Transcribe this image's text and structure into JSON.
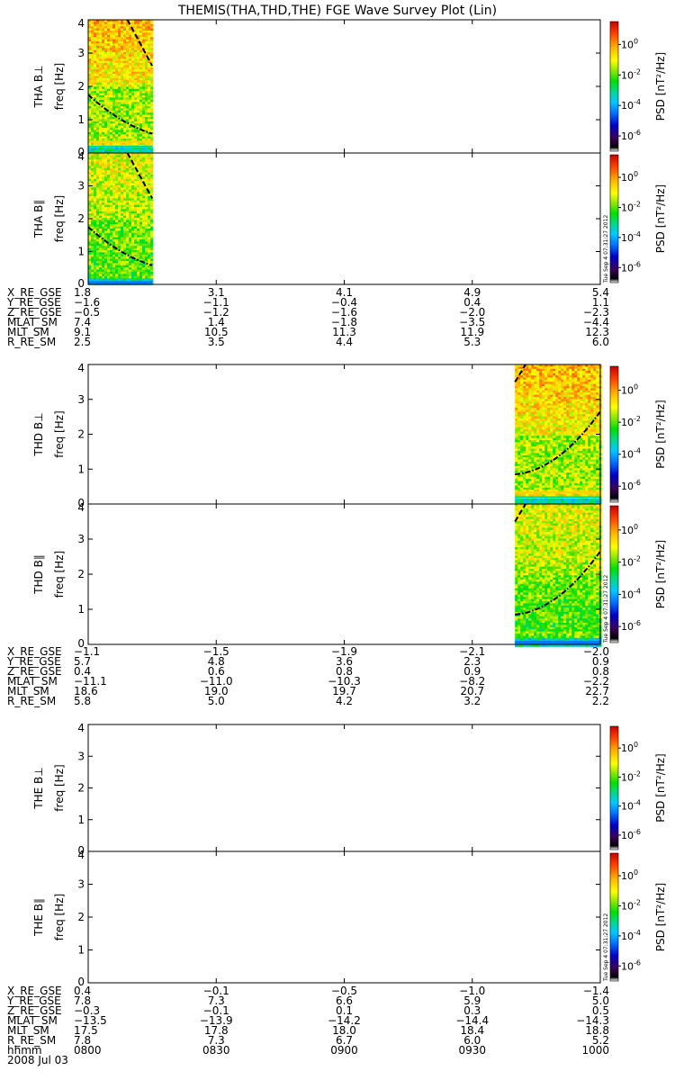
{
  "chart_data": {
    "type": "heatmap",
    "title": "THEMIS(THA,THD,THE) FGE Wave Survey Plot (Lin)",
    "x_time_range": [
      "0800",
      "1000"
    ],
    "x_tick_labels": [
      "0800",
      "0830",
      "0900",
      "0930",
      "1000"
    ],
    "date_label": "2008 Jul 03",
    "time_row_label": "hhmm",
    "freq_ylim": [
      0,
      4
    ],
    "freq_tick_labels": [
      "0",
      "1",
      "2",
      "3",
      "4"
    ],
    "colorbar": {
      "label": "PSD [nT²/Hz]",
      "log_range": [
        -7,
        1.5
      ],
      "tick_exponents": [
        0,
        -2,
        -4,
        -6
      ],
      "tick_base": "10"
    },
    "stamp_text": "Tue Sep 4 07:31:27 2012",
    "panels": [
      {
        "ylabel_probe": "THA B⊥",
        "ylabel_unit": "freq [Hz]",
        "data_time_range": [
          "0800",
          "0815"
        ],
        "fc_curve_a": [
          [
            0,
            1.75
          ],
          [
            7.5,
            1.02
          ],
          [
            15,
            0.58
          ]
        ],
        "fc_curve_b": [
          [
            9.2,
            4.0
          ],
          [
            15,
            2.62
          ]
        ],
        "spectrum": "perp",
        "stamp": false
      },
      {
        "ylabel_probe": "THA B∥",
        "ylabel_unit": "freq [Hz]",
        "data_time_range": [
          "0800",
          "0815"
        ],
        "fc_curve_a": [
          [
            0,
            1.75
          ],
          [
            7.5,
            1.02
          ],
          [
            15,
            0.58
          ]
        ],
        "fc_curve_b": [
          [
            9.2,
            4.0
          ],
          [
            15,
            2.62
          ]
        ],
        "spectrum": "par",
        "stamp": true
      },
      {
        "ylabel_probe": "THD B⊥",
        "ylabel_unit": "freq [Hz]",
        "data_time_range": [
          "0940",
          "1000"
        ],
        "fc_curve_a": [
          [
            100,
            0.85
          ],
          [
            110,
            1.35
          ],
          [
            120,
            2.65
          ]
        ],
        "fc_curve_b": [
          [
            100,
            3.5
          ],
          [
            102.5,
            4.0
          ]
        ],
        "spectrum": "perp",
        "stamp": false
      },
      {
        "ylabel_probe": "THD B∥",
        "ylabel_unit": "freq [Hz]",
        "data_time_range": [
          "0940",
          "1000"
        ],
        "fc_curve_a": [
          [
            100,
            0.85
          ],
          [
            110,
            1.35
          ],
          [
            120,
            2.65
          ]
        ],
        "fc_curve_b": [
          [
            100,
            3.5
          ],
          [
            102.5,
            4.0
          ]
        ],
        "spectrum": "par",
        "stamp": true
      },
      {
        "ylabel_probe": "THE B⊥",
        "ylabel_unit": "freq [Hz]",
        "data_time_range": null,
        "fc_curve_a": null,
        "fc_curve_b": null,
        "spectrum": "none",
        "stamp": false
      },
      {
        "ylabel_probe": "THE B∥",
        "ylabel_unit": "freq [Hz]",
        "data_time_range": null,
        "fc_curve_a": null,
        "fc_curve_b": null,
        "spectrum": "none",
        "stamp": true
      }
    ],
    "ephemeris_blocks": [
      {
        "probe": "THA",
        "rows": [
          {
            "label": "X_RE_GSE",
            "values": [
              "1.8",
              "3.1",
              "4.1",
              "4.9",
              "5.4"
            ]
          },
          {
            "label": "Y_RE_GSE",
            "values": [
              "−1.6",
              "−1.1",
              "−0.4",
              "0.4",
              "1.1"
            ]
          },
          {
            "label": "Z_RE_GSE",
            "values": [
              "−0.5",
              "−1.2",
              "−1.6",
              "−2.0",
              "−2.3"
            ]
          },
          {
            "label": "MLAT_SM",
            "values": [
              "7.4",
              "1.4",
              "−1.8",
              "−3.5",
              "−4.4"
            ]
          },
          {
            "label": "MLT_SM",
            "values": [
              "9.1",
              "10.5",
              "11.3",
              "11.9",
              "12.3"
            ]
          },
          {
            "label": "R_RE_SM",
            "values": [
              "2.5",
              "3.5",
              "4.4",
              "5.3",
              "6.0"
            ]
          }
        ]
      },
      {
        "probe": "THD",
        "rows": [
          {
            "label": "X_RE_GSE",
            "values": [
              "−1.1",
              "−1.5",
              "−1.9",
              "−2.1",
              "−2.0"
            ]
          },
          {
            "label": "Y_RE_GSE",
            "values": [
              "5.7",
              "4.8",
              "3.6",
              "2.3",
              "0.9"
            ]
          },
          {
            "label": "Z_RE_GSE",
            "values": [
              "0.4",
              "0.6",
              "0.8",
              "0.9",
              "0.8"
            ]
          },
          {
            "label": "MLAT_SM",
            "values": [
              "−11.1",
              "−11.0",
              "−10.3",
              "−8.2",
              "−2.2"
            ]
          },
          {
            "label": "MLT_SM",
            "values": [
              "18.6",
              "19.0",
              "19.7",
              "20.7",
              "22.7"
            ]
          },
          {
            "label": "R_RE_SM",
            "values": [
              "5.8",
              "5.0",
              "4.2",
              "3.2",
              "2.2"
            ]
          }
        ]
      },
      {
        "probe": "THE",
        "rows": [
          {
            "label": "X_RE_GSE",
            "values": [
              "0.4",
              "−0.1",
              "−0.5",
              "−1.0",
              "−1.4"
            ]
          },
          {
            "label": "Y_RE_GSE",
            "values": [
              "7.8",
              "7.3",
              "6.6",
              "5.9",
              "5.0"
            ]
          },
          {
            "label": "Z_RE_GSE",
            "values": [
              "−0.3",
              "−0.1",
              "0.1",
              "0.3",
              "0.5"
            ]
          },
          {
            "label": "MLAT_SM",
            "values": [
              "−13.5",
              "−13.9",
              "−14.2",
              "−14.4",
              "−14.3"
            ]
          },
          {
            "label": "MLT_SM",
            "values": [
              "17.5",
              "17.8",
              "18.0",
              "18.4",
              "18.8"
            ]
          },
          {
            "label": "R_RE_SM",
            "values": [
              "7.8",
              "7.3",
              "6.7",
              "6.0",
              "5.2"
            ]
          }
        ]
      }
    ]
  }
}
